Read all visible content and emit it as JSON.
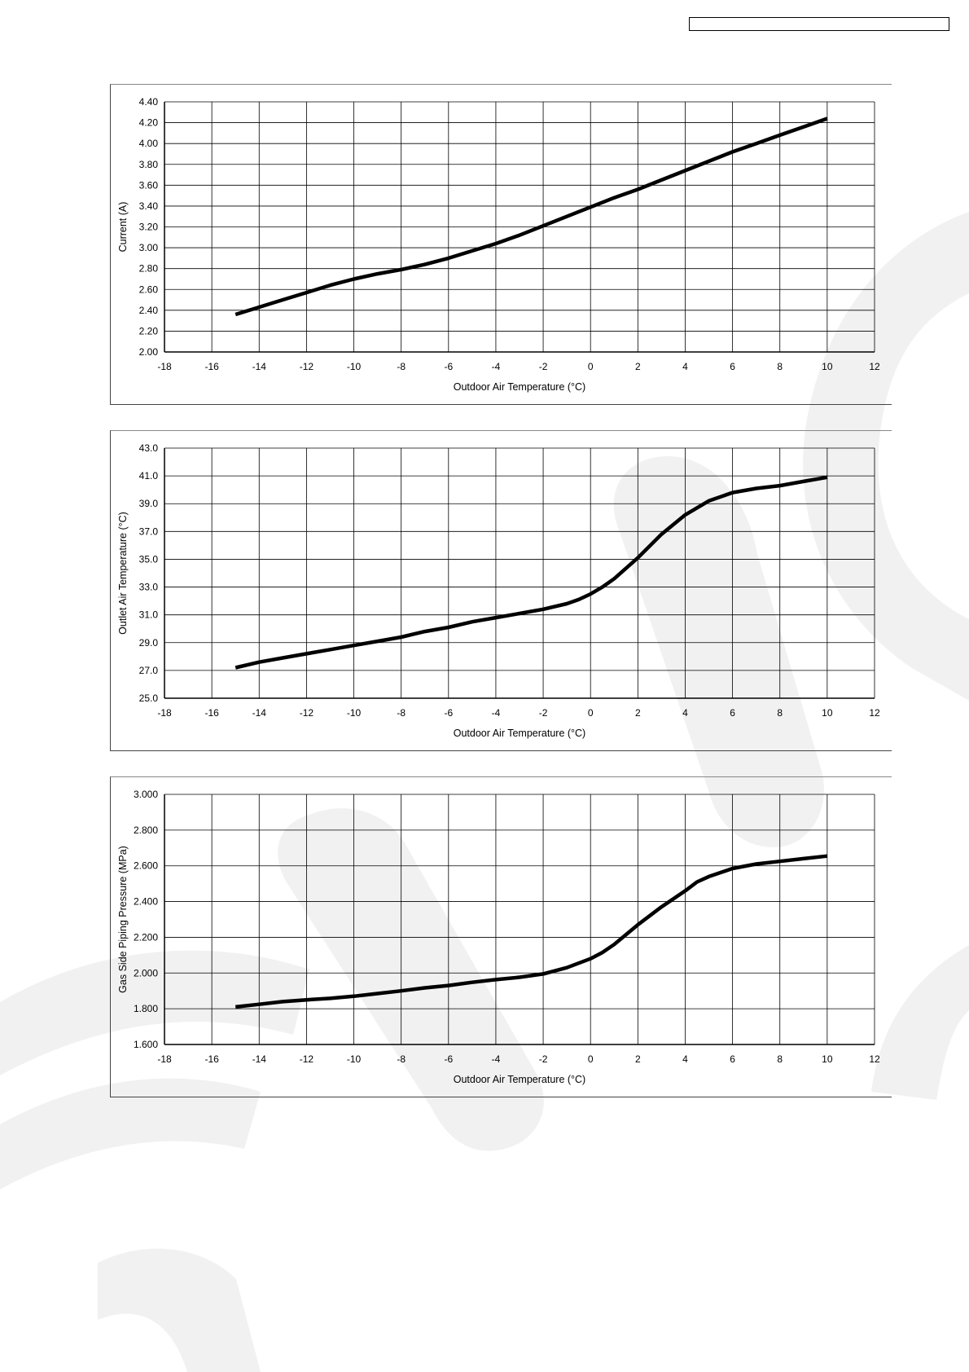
{
  "colors": {
    "line": "#000000",
    "grid": "#000000",
    "watermark": "#f2f2f2"
  },
  "header": {
    "box_text": ""
  },
  "chart_data": [
    {
      "type": "line",
      "xlabel": "Outdoor Air Temperature (°C)",
      "ylabel": "Current (A)",
      "xlim": [
        -18,
        12
      ],
      "ylim": [
        2.0,
        4.4
      ],
      "xticks": [
        -18,
        -16,
        -14,
        -12,
        -10,
        -8,
        -6,
        -4,
        -2,
        0,
        2,
        4,
        6,
        8,
        10,
        12
      ],
      "yticks": [
        2.0,
        2.2,
        2.4,
        2.6,
        2.8,
        3.0,
        3.2,
        3.4,
        3.6,
        3.8,
        4.0,
        4.2,
        4.4
      ],
      "ydecimals": 2,
      "grid": true,
      "series": [
        {
          "x": [
            -15,
            -14,
            -13,
            -12,
            -11,
            -10,
            -9,
            -8,
            -7,
            -6,
            -5,
            -4,
            -3,
            -2,
            -1,
            0,
            1,
            2,
            3,
            4,
            5,
            6,
            7,
            8,
            9,
            10
          ],
          "y": [
            2.36,
            2.43,
            2.5,
            2.57,
            2.64,
            2.7,
            2.75,
            2.79,
            2.84,
            2.9,
            2.97,
            3.04,
            3.12,
            3.21,
            3.3,
            3.39,
            3.48,
            3.56,
            3.65,
            3.74,
            3.83,
            3.92,
            4.0,
            4.08,
            4.16,
            4.24
          ]
        }
      ]
    },
    {
      "type": "line",
      "xlabel": "Outdoor Air Temperature (°C)",
      "ylabel": "Outlet Air Temperature (°C)",
      "xlim": [
        -18,
        12
      ],
      "ylim": [
        25.0,
        43.0
      ],
      "xticks": [
        -18,
        -16,
        -14,
        -12,
        -10,
        -8,
        -6,
        -4,
        -2,
        0,
        2,
        4,
        6,
        8,
        10,
        12
      ],
      "yticks": [
        25.0,
        27.0,
        29.0,
        31.0,
        33.0,
        35.0,
        37.0,
        39.0,
        41.0,
        43.0
      ],
      "ydecimals": 1,
      "grid": true,
      "series": [
        {
          "x": [
            -15,
            -14,
            -13,
            -12,
            -11,
            -10,
            -9,
            -8,
            -7,
            -6,
            -5,
            -4,
            -3,
            -2,
            -1,
            -0.5,
            0,
            0.5,
            1,
            2,
            3,
            4,
            5,
            6,
            7,
            8,
            9,
            10
          ],
          "y": [
            27.2,
            27.6,
            27.9,
            28.2,
            28.5,
            28.8,
            29.1,
            29.4,
            29.8,
            30.1,
            30.5,
            30.8,
            31.1,
            31.4,
            31.8,
            32.1,
            32.5,
            33.0,
            33.6,
            35.1,
            36.8,
            38.2,
            39.2,
            39.8,
            40.1,
            40.3,
            40.6,
            40.9
          ]
        }
      ]
    },
    {
      "type": "line",
      "xlabel": "Outdoor Air Temperature (°C)",
      "ylabel": "Gas Side Piping Pressure (MPa)",
      "xlim": [
        -18,
        12
      ],
      "ylim": [
        1.6,
        3.0
      ],
      "xticks": [
        -18,
        -16,
        -14,
        -12,
        -10,
        -8,
        -6,
        -4,
        -2,
        0,
        2,
        4,
        6,
        8,
        10,
        12
      ],
      "yticks": [
        1.6,
        1.8,
        2.0,
        2.2,
        2.4,
        2.6,
        2.8,
        3.0
      ],
      "ydecimals": 3,
      "grid": true,
      "series": [
        {
          "x": [
            -15,
            -14,
            -13,
            -12,
            -11,
            -10,
            -9,
            -8,
            -7,
            -6,
            -5,
            -4,
            -3,
            -2,
            -1,
            0,
            0.5,
            1,
            2,
            3,
            4,
            4.5,
            5,
            6,
            7,
            8,
            9,
            10
          ],
          "y": [
            1.81,
            1.825,
            1.84,
            1.85,
            1.858,
            1.87,
            1.885,
            1.9,
            1.917,
            1.93,
            1.948,
            1.963,
            1.976,
            1.995,
            2.03,
            2.08,
            2.115,
            2.16,
            2.27,
            2.37,
            2.46,
            2.51,
            2.54,
            2.585,
            2.61,
            2.625,
            2.64,
            2.655
          ]
        }
      ]
    }
  ]
}
